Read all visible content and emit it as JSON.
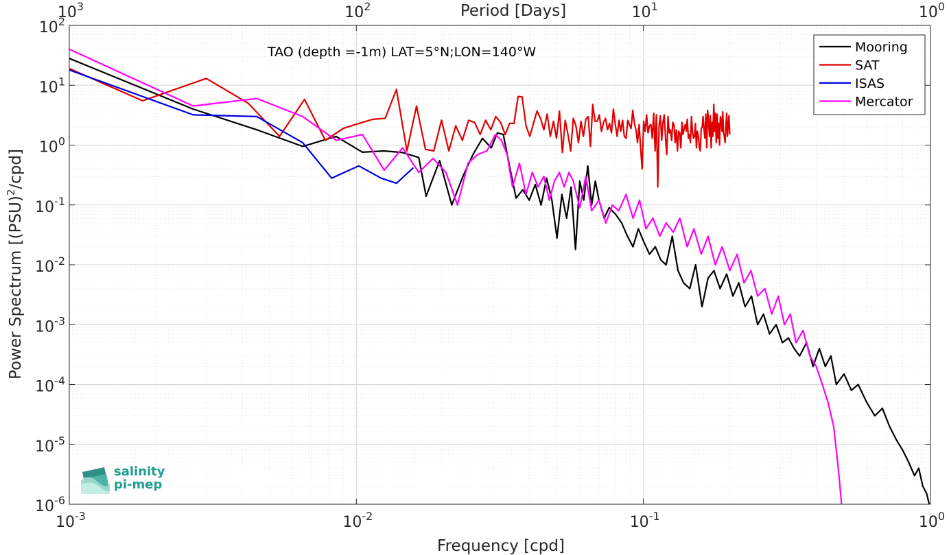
{
  "chart_data": {
    "type": "line",
    "title": "TAO (depth =-1m) LAT=5°N;LON=140°W",
    "xlabel": "Frequency [cpd]",
    "ylabel_prefix": "Power Spectrum [(PSU)",
    "ylabel_sup": "2",
    "ylabel_suffix": "/cpd]",
    "top_xlabel": "Period [Days]",
    "xscale": "log",
    "yscale": "log",
    "xlim": [
      0.001,
      1
    ],
    "ylim": [
      1e-06,
      100
    ],
    "grid": true,
    "legend_position": "top-right",
    "x_ticks": [
      {
        "base": "10",
        "exp": "-3",
        "value": 0.001
      },
      {
        "base": "10",
        "exp": "-2",
        "value": 0.01
      },
      {
        "base": "10",
        "exp": "-1",
        "value": 0.1
      },
      {
        "base": "10",
        "exp": "0",
        "value": 1
      }
    ],
    "top_ticks": [
      {
        "base": "10",
        "exp": "3",
        "freq": 0.001
      },
      {
        "base": "10",
        "exp": "2",
        "freq": 0.01
      },
      {
        "base": "10",
        "exp": "1",
        "freq": 0.1
      },
      {
        "base": "10",
        "exp": "0",
        "freq": 1
      }
    ],
    "y_ticks": [
      {
        "base": "10",
        "exp": "-6",
        "value": 1e-06
      },
      {
        "base": "10",
        "exp": "-5",
        "value": 1e-05
      },
      {
        "base": "10",
        "exp": "-4",
        "value": 0.0001
      },
      {
        "base": "10",
        "exp": "-3",
        "value": 0.001
      },
      {
        "base": "10",
        "exp": "-2",
        "value": 0.01
      },
      {
        "base": "10",
        "exp": "-1",
        "value": 0.1
      },
      {
        "base": "10",
        "exp": "0",
        "value": 1
      },
      {
        "base": "10",
        "exp": "1",
        "value": 10
      },
      {
        "base": "10",
        "exp": "2",
        "value": 100
      }
    ],
    "series": [
      {
        "name": "Mooring",
        "color": "#000000",
        "x": [
          0.001,
          0.0027,
          0.0045,
          0.0065,
          0.0085,
          0.0105,
          0.0125,
          0.0145,
          0.0165,
          0.0175,
          0.0195,
          0.0215,
          0.0235,
          0.0255,
          0.0275,
          0.0295,
          0.031,
          0.0325,
          0.034,
          0.036,
          0.038,
          0.04,
          0.042,
          0.044,
          0.046,
          0.048,
          0.05,
          0.052,
          0.054,
          0.056,
          0.058,
          0.06,
          0.062,
          0.064,
          0.066,
          0.068,
          0.07,
          0.073,
          0.076,
          0.08,
          0.084,
          0.088,
          0.092,
          0.096,
          0.1,
          0.105,
          0.11,
          0.115,
          0.12,
          0.126,
          0.132,
          0.138,
          0.145,
          0.152,
          0.16,
          0.168,
          0.176,
          0.185,
          0.195,
          0.205,
          0.215,
          0.226,
          0.238,
          0.25,
          0.262,
          0.275,
          0.29,
          0.305,
          0.32,
          0.335,
          0.35,
          0.37,
          0.39,
          0.41,
          0.43,
          0.45,
          0.47,
          0.5,
          0.53,
          0.56,
          0.6,
          0.64,
          0.68,
          0.72,
          0.76,
          0.8,
          0.84,
          0.88,
          0.91,
          0.94,
          0.97,
          0.99
        ],
        "y": [
          28,
          4,
          1.8,
          0.95,
          1.4,
          0.76,
          0.8,
          0.75,
          0.62,
          0.14,
          0.55,
          0.1,
          0.3,
          0.7,
          1.3,
          0.9,
          1.6,
          1.5,
          0.5,
          0.13,
          0.18,
          0.12,
          0.22,
          0.1,
          0.28,
          0.12,
          0.028,
          0.15,
          0.06,
          0.2,
          0.018,
          0.25,
          0.12,
          0.45,
          0.1,
          0.25,
          0.12,
          0.06,
          0.09,
          0.07,
          0.05,
          0.03,
          0.02,
          0.04,
          0.025,
          0.015,
          0.02,
          0.012,
          0.01,
          0.03,
          0.008,
          0.005,
          0.004,
          0.01,
          0.002,
          0.006,
          0.008,
          0.004,
          0.007,
          0.003,
          0.005,
          0.002,
          0.003,
          0.001,
          0.0015,
          0.0007,
          0.001,
          0.0005,
          0.0006,
          0.0004,
          0.0003,
          0.0005,
          0.0002,
          0.0004,
          0.0002,
          0.0003,
          0.0001,
          0.00015,
          8e-05,
          0.0001,
          5e-05,
          3e-05,
          4e-05,
          2e-05,
          1.2e-05,
          8e-06,
          5e-06,
          3e-06,
          4e-06,
          2e-06,
          1.5e-06,
          1e-06
        ]
      },
      {
        "name": "SAT",
        "color": "#e00000",
        "x": [
          0.001,
          0.0018,
          0.003,
          0.0042,
          0.0054,
          0.0066,
          0.0078,
          0.009,
          0.0102,
          0.0114,
          0.0126,
          0.0138,
          0.015,
          0.0162,
          0.0174,
          0.0186,
          0.0198,
          0.021,
          0.0222,
          0.0234,
          0.0246,
          0.0258,
          0.027,
          0.0282,
          0.0294,
          0.0306,
          0.0318,
          0.033,
          0.0342,
          0.0354,
          0.0366,
          0.0378,
          0.039,
          0.0402,
          0.0414,
          0.0426,
          0.0438,
          0.045,
          0.0462,
          0.0474,
          0.0486,
          0.0498,
          0.051,
          0.0522,
          0.0534,
          0.0546,
          0.0558,
          0.057,
          0.0582,
          0.0594,
          0.0606,
          0.0618,
          0.063,
          0.0642,
          0.0654,
          0.0666,
          0.0678,
          0.069,
          0.0702,
          0.0714,
          0.0726,
          0.0738,
          0.075,
          0.0762,
          0.0774,
          0.0786,
          0.0798,
          0.081,
          0.0822,
          0.0834,
          0.0846,
          0.0858,
          0.087,
          0.0882,
          0.0894,
          0.0906,
          0.0918,
          0.093,
          0.0942,
          0.0954,
          0.0966,
          0.0978,
          0.099,
          0.1002,
          0.1014,
          0.1026,
          0.1038,
          0.105,
          0.1062,
          0.1074,
          0.1086,
          0.1098,
          0.111,
          0.1122,
          0.1134,
          0.1146,
          0.1158,
          0.117,
          0.1182,
          0.1194,
          0.1206,
          0.1218,
          0.123,
          0.1242,
          0.1254,
          0.1266,
          0.1278,
          0.129,
          0.1302,
          0.1314,
          0.1326,
          0.1338,
          0.135,
          0.1362,
          0.1374,
          0.1386,
          0.1398,
          0.141,
          0.1422,
          0.1434,
          0.1446,
          0.1458,
          0.147,
          0.1482,
          0.1494,
          0.1506,
          0.1518,
          0.153,
          0.1542,
          0.1554,
          0.1566,
          0.1578,
          0.159,
          0.1602,
          0.1614,
          0.1626,
          0.1638,
          0.165,
          0.1662,
          0.1674,
          0.1686,
          0.1698,
          0.171,
          0.1722,
          0.1734,
          0.1746,
          0.1758,
          0.177,
          0.1782,
          0.1794,
          0.1806,
          0.1818,
          0.183,
          0.1842,
          0.1854,
          0.1866,
          0.1878,
          0.189,
          0.1902,
          0.1914,
          0.1926,
          0.1938,
          0.195,
          0.1962,
          0.1974,
          0.1986,
          0.2
        ],
        "y": [
          19,
          5.5,
          13,
          5,
          1.4,
          5.8,
          1.2,
          1.9,
          2.3,
          2.7,
          2.8,
          8.5,
          0.8,
          4.5,
          0.85,
          0.8,
          2.6,
          0.8,
          2.1,
          1.2,
          2.6,
          2.4,
          1.5,
          2.6,
          1.8,
          3,
          2.4,
          1.5,
          2.3,
          2.3,
          6.5,
          6.4,
          2.1,
          1.4,
          2.3,
          3.7,
          2.8,
          1.8,
          3.3,
          1.4,
          2.5,
          1.3,
          3.7,
          0.75,
          2.6,
          1.5,
          0.8,
          2.8,
          2.1,
          1.1,
          2.5,
          1.4,
          2.7,
          3,
          0.95,
          4.8,
          2.5,
          2.5,
          3.2,
          1.7,
          2.4,
          2.8,
          1.8,
          2.3,
          1.6,
          4,
          2.2,
          1.4,
          2.6,
          1.7,
          2.6,
          1.4,
          1.3,
          2.6,
          2.2,
          1.9,
          3.8,
          2.3,
          1.8,
          1.1,
          2.2,
          0.9,
          0.4,
          2.5,
          1.7,
          3.2,
          1.6,
          2.1,
          2.2,
          1.3,
          3.4,
          0.8,
          3.2,
          0.2,
          2.1,
          3.1,
          1.2,
          2.4,
          3.2,
          1.3,
          0.7,
          3,
          1.6,
          1.8,
          1.2,
          2.4,
          2.2,
          1.1,
          1.8,
          0.8,
          1.7,
          1.6,
          0.9,
          2.4,
          1.5,
          1.9,
          2.2,
          1.7,
          2.7,
          1.3,
          1.5,
          1.1,
          3,
          1.7,
          1.3,
          1.4,
          2.3,
          0.9,
          1.7,
          1.4,
          0.9,
          0.8,
          1.9,
          2,
          3,
          1.8,
          1.3,
          3.3,
          0.9,
          3.8,
          2.5,
          1.4,
          3.1,
          0.9,
          2.4,
          1.4,
          4.8,
          1.7,
          3.4,
          1.1,
          3.3,
          1.3,
          2.3,
          1,
          3,
          2.7,
          1.7,
          3.6,
          1.6,
          1.4,
          1.1,
          2.1,
          3.4,
          1.4,
          2.1,
          3.1,
          1.5
        ]
      },
      {
        "name": "ISAS",
        "color": "#0000e0",
        "x": [
          0.001,
          0.0027,
          0.0045,
          0.0065,
          0.0082,
          0.0102,
          0.0122,
          0.0138,
          0.0158
        ],
        "y": [
          18,
          3.2,
          3.0,
          1.1,
          0.28,
          0.45,
          0.28,
          0.23,
          0.42
        ]
      },
      {
        "name": "Mercator",
        "color": "#ff00ff",
        "x": [
          0.001,
          0.0027,
          0.0045,
          0.0065,
          0.0085,
          0.0105,
          0.0125,
          0.0145,
          0.0165,
          0.0185,
          0.0205,
          0.0225,
          0.0245,
          0.0265,
          0.0285,
          0.0305,
          0.032,
          0.0335,
          0.035,
          0.037,
          0.039,
          0.041,
          0.043,
          0.045,
          0.047,
          0.049,
          0.051,
          0.053,
          0.055,
          0.057,
          0.06,
          0.063,
          0.066,
          0.07,
          0.074,
          0.078,
          0.082,
          0.087,
          0.092,
          0.097,
          0.102,
          0.108,
          0.114,
          0.12,
          0.127,
          0.134,
          0.142,
          0.15,
          0.159,
          0.168,
          0.178,
          0.188,
          0.2,
          0.212,
          0.224,
          0.237,
          0.25,
          0.265,
          0.28,
          0.295,
          0.31,
          0.325,
          0.34,
          0.36,
          0.38,
          0.4,
          0.42,
          0.44,
          0.46,
          0.47,
          0.48,
          0.49
        ],
        "y": [
          40,
          4.5,
          6,
          3,
          1.2,
          1.5,
          0.38,
          0.9,
          0.35,
          0.6,
          0.35,
          0.1,
          0.5,
          0.7,
          0.8,
          1.5,
          1.2,
          0.7,
          0.2,
          0.5,
          0.15,
          0.35,
          0.2,
          0.3,
          0.12,
          0.25,
          0.35,
          0.2,
          0.35,
          0.25,
          0.09,
          0.3,
          0.08,
          0.12,
          0.05,
          0.1,
          0.08,
          0.15,
          0.06,
          0.12,
          0.04,
          0.06,
          0.03,
          0.05,
          0.035,
          0.06,
          0.02,
          0.04,
          0.015,
          0.03,
          0.01,
          0.02,
          0.008,
          0.015,
          0.005,
          0.008,
          0.003,
          0.004,
          0.0015,
          0.003,
          0.001,
          0.0015,
          0.0005,
          0.0008,
          0.0003,
          0.0002,
          0.0001,
          5e-05,
          2e-05,
          8e-06,
          3e-06,
          1e-06
        ]
      }
    ]
  },
  "logo": {
    "line1": "salinity",
    "line2": "pi-mep",
    "color": "#1f9e8e"
  }
}
